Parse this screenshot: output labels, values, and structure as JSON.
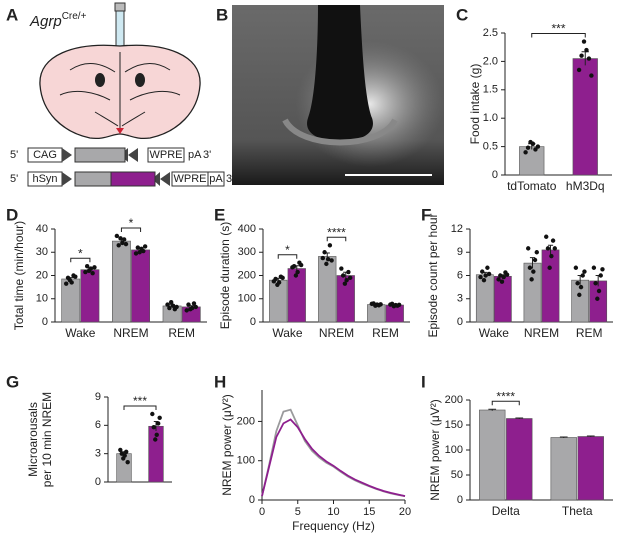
{
  "figure": {
    "A": {
      "label": "A",
      "genotype": "Agrp",
      "genotype_sup": "Cre/+",
      "constructs": [
        {
          "five": "5'",
          "promoter": "CAG",
          "wpre": "WPRE",
          "pa": "pA",
          "three": "3'"
        },
        {
          "five": "5'",
          "promoter": "hSyn",
          "wpre": "WPRE",
          "pa": "pA",
          "three": "3'"
        }
      ]
    },
    "B": {
      "label": "B"
    }
  },
  "chart_data": [
    {
      "type": "bar",
      "label": "C",
      "ylabel": "Food intake (g)",
      "categories": [
        "tdTomato",
        "hM3Dq"
      ],
      "values": [
        0.5,
        2.05
      ],
      "errors": [
        0.05,
        0.12
      ],
      "points": [
        [
          0.58,
          0.55,
          0.48,
          0.45,
          0.4,
          0.5
        ],
        [
          2.35,
          2.2,
          2.1,
          2.05,
          1.85,
          1.75
        ]
      ],
      "colors": [
        "#a8a8aa",
        "#8e1f8e"
      ],
      "ylim": [
        0,
        2.5
      ],
      "yticks": [
        0,
        0.5,
        {
          "value": 1,
          "label": "1.0"
        },
        1.5,
        {
          "value": 2,
          "label": "2.0"
        },
        2.5
      ],
      "annotations": [
        {
          "text": "***",
          "between": [
            0,
            1
          ]
        }
      ]
    },
    {
      "type": "bar",
      "label": "D",
      "ylabel": "Total time (min/hour)",
      "categories": [
        "Wake",
        "NREM",
        "REM"
      ],
      "series": [
        {
          "color": "#a8a8aa",
          "values": [
            18.5,
            34.8,
            6.9
          ],
          "errors": [
            0.6,
            0.8,
            0.5
          ],
          "points": [
            [
              18,
              17,
              19,
              20,
              16.5,
              19.5
            ],
            [
              36,
              34,
              33,
              35.5,
              37,
              33.5
            ],
            [
              8.5,
              7,
              6,
              5.5,
              7.5,
              6.5
            ]
          ]
        },
        {
          "color": "#8e1f8e",
          "values": [
            22.5,
            31,
            6.5
          ],
          "errors": [
            0.7,
            0.6,
            0.5
          ],
          "points": [
            [
              22,
              23,
              24,
              21,
              21.5,
              23.5
            ],
            [
              30,
              31.5,
              32,
              30.5,
              29.5,
              32.5
            ],
            [
              5.5,
              6,
              7.5,
              8,
              5,
              6.5
            ]
          ]
        }
      ],
      "ylim": [
        0,
        40
      ],
      "yticks": [
        0,
        10,
        20,
        30,
        40
      ],
      "annotations": [
        {
          "text": "*",
          "category": 0
        },
        {
          "text": "*",
          "category": 1
        }
      ]
    },
    {
      "type": "bar",
      "label": "E",
      "ylabel": "Episode duration (s)",
      "categories": [
        "Wake",
        "NREM",
        "REM"
      ],
      "series": [
        {
          "color": "#a8a8aa",
          "values": [
            180,
            282,
            75
          ],
          "errors": [
            8,
            15,
            2
          ],
          " points": null,
          "points": [
            [
              160,
              170,
              185,
              195,
              175,
              190
            ],
            [
              250,
              270,
              300,
              330,
              275,
              265
            ],
            [
              70,
              75,
              80,
              72,
              78,
              76
            ]
          ]
        },
        {
          "color": "#8e1f8e",
          "values": [
            230,
            200,
            73
          ],
          "errors": [
            12,
            14,
            2
          ],
          "points": [
            [
              200,
              215,
              240,
              255,
              235,
              245
            ],
            [
              165,
              180,
              200,
              215,
              230,
              190
            ],
            [
              68,
              73,
              78,
              70,
              75,
              74
            ]
          ]
        }
      ],
      "ylim": [
        0,
        400
      ],
      "yticks": [
        0,
        100,
        200,
        300,
        400
      ],
      "annotations": [
        {
          "text": "*",
          "category": 0
        },
        {
          "text": "****",
          "category": 1
        }
      ]
    },
    {
      "type": "bar",
      "label": "F",
      "ylabel": "Episode count per hour",
      "categories": [
        "Wake",
        "NREM",
        "REM"
      ],
      "series": [
        {
          "color": "#a8a8aa",
          "values": [
            6.1,
            7.6,
            5.4
          ],
          "errors": [
            0.3,
            0.7,
            0.6
          ],
          "points": [
            [
              5.4,
              6,
              6.5,
              7,
              5.8,
              6.2
            ],
            [
              5.5,
              6.5,
              7,
              8,
              9.5,
              9
            ],
            [
              3.5,
              4.5,
              5,
              6,
              7,
              6.5
            ]
          ]
        },
        {
          "color": "#8e1f8e",
          "values": [
            5.9,
            9.3,
            5.3
          ],
          "errors": [
            0.2,
            0.6,
            0.7
          ],
          "points": [
            [
              5.2,
              5.8,
              6,
              6.4,
              5.5,
              6.1
            ],
            [
              7,
              8.5,
              9.5,
              10.5,
              11,
              9.5
            ],
            [
              3,
              4,
              5,
              6,
              7,
              6.8
            ]
          ]
        }
      ],
      "ylim": [
        0,
        12
      ],
      "yticks": [
        0,
        3,
        6,
        9,
        12
      ]
    },
    {
      "type": "bar",
      "label": "G",
      "ylabel": [
        "Microarousals",
        "per 10 min NREM"
      ],
      "categories": [
        null,
        null
      ],
      "values": [
        3,
        5.9
      ],
      "errors": [
        0.2,
        0.5
      ],
      "points": [
        [
          2.5,
          2.8,
          3,
          3.2,
          3.4,
          2.1
        ],
        [
          4.5,
          5,
          5.8,
          6.2,
          7.2,
          6.8
        ]
      ],
      "colors": [
        "#a8a8aa",
        "#8e1f8e"
      ],
      "ylim": [
        0,
        9
      ],
      "yticks": [
        0,
        3,
        6,
        9
      ],
      "annotations": [
        {
          "text": "***",
          "between": [
            0,
            1
          ]
        }
      ]
    },
    {
      "type": "line",
      "label": "H",
      "ylabel": "NREM power (μV²)",
      "xlabel": "Frequency (Hz)",
      "x": [
        0,
        1,
        2,
        3,
        4,
        5,
        6,
        7,
        8,
        9,
        10,
        11,
        12,
        13,
        14,
        15,
        16,
        17,
        18,
        19,
        20
      ],
      "series": [
        {
          "color": "#9a9a9c",
          "values": [
            10,
            90,
            175,
            225,
            230,
            190,
            150,
            125,
            108,
            95,
            85,
            72,
            60,
            50,
            42,
            35,
            28,
            22,
            17,
            13,
            10
          ]
        },
        {
          "color": "#8e1f8e",
          "values": [
            10,
            85,
            160,
            195,
            205,
            185,
            155,
            130,
            112,
            98,
            87,
            74,
            62,
            52,
            44,
            36,
            29,
            23,
            18,
            14,
            10
          ]
        }
      ],
      "xlim": [
        0,
        20
      ],
      "xticks": [
        0,
        5,
        10,
        15,
        20
      ],
      "ylim": [
        0,
        280
      ],
      "yticks": [
        0,
        100,
        200
      ]
    },
    {
      "type": "bar",
      "label": "I",
      "ylabel": "NREM power (μV²)",
      "categories": [
        "Delta",
        "Theta"
      ],
      "series": [
        {
          "color": "#a8a8aa",
          "values": [
            180,
            125
          ],
          "errors": [
            1.5,
            1
          ]
        },
        {
          "color": "#8e1f8e",
          "values": [
            163,
            127
          ],
          "errors": [
            1,
            1
          ]
        }
      ],
      "ylim": [
        0,
        200
      ],
      "yticks": [
        0,
        50,
        100,
        150,
        200
      ],
      "annotations": [
        {
          "text": "****",
          "category": 0
        }
      ]
    }
  ]
}
